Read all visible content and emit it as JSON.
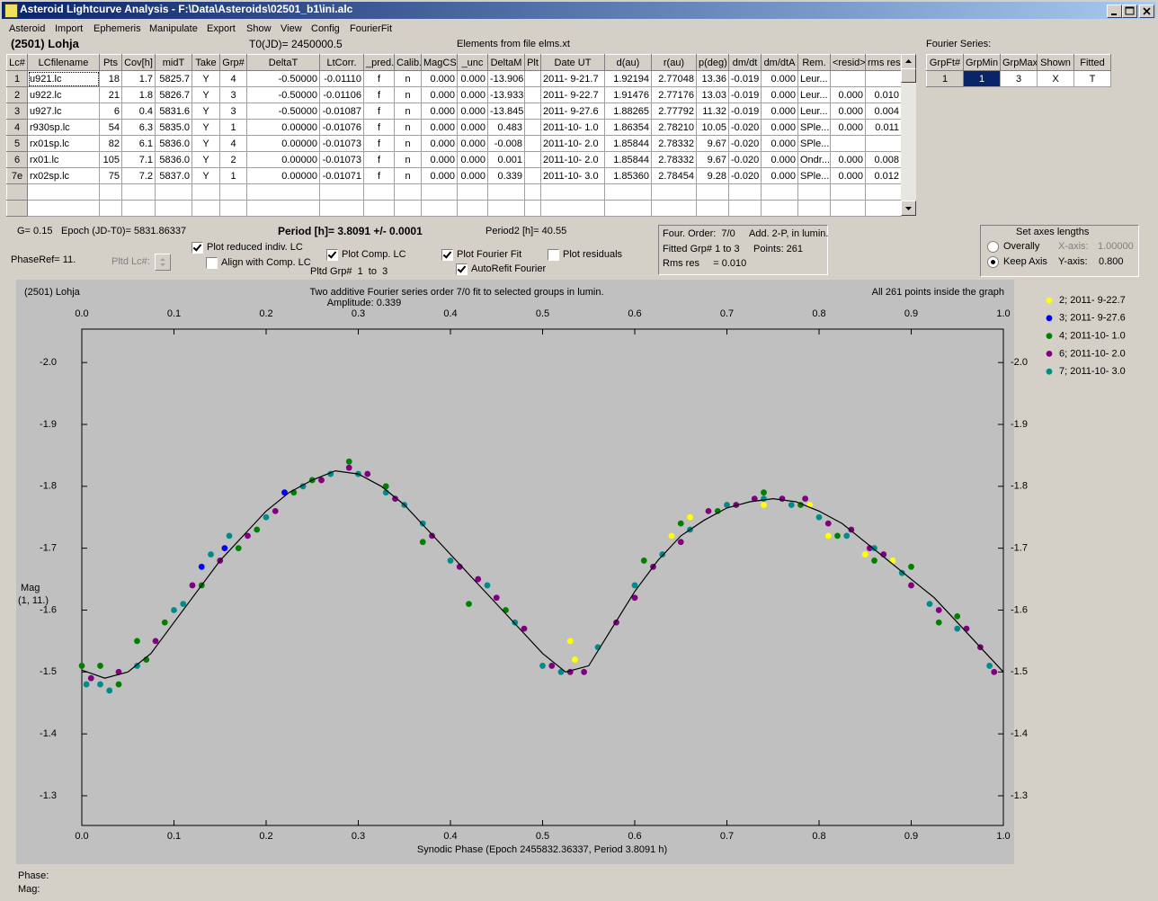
{
  "window": {
    "title": "Asteroid Lightcurve Analysis - F:\\Data\\Asteroids\\02501_b1\\ini.alc",
    "menu": [
      "Asteroid",
      "Import",
      "Ephemeris",
      "Manipulate",
      "Export",
      "Show",
      "View",
      "Config",
      "FourierFit"
    ]
  },
  "header": {
    "object": "(2501) Lohja",
    "t0": "T0(JD)= 2450000.5",
    "elements": "Elements from file elms.xt"
  },
  "lc_table": {
    "columns": [
      "Lc#",
      "LCfilename",
      "Pts",
      "Cov[h]",
      "midT",
      "Take",
      "Grp#",
      "DeltaT",
      "LtCorr.",
      "_pred.",
      "Calib.",
      "MagCS",
      "_unc",
      "DeltaM",
      "Plt",
      "Date UT",
      "d(au)",
      "r(au)",
      "p(deg)",
      "dm/dt",
      "dm/dtA",
      "Rem.",
      "<resid>",
      "rms res"
    ],
    "rows": [
      [
        "1",
        "u921.lc",
        "18",
        "1.7",
        "5825.7",
        "Y",
        "4",
        "-0.50000",
        "-0.01110",
        "f",
        "n",
        "0.000",
        "0.000",
        "-13.906",
        null,
        "2011- 9-21.7",
        "1.92194",
        "2.77048",
        "13.36",
        "-0.019",
        "0.000",
        "Leur...",
        null,
        null
      ],
      [
        "2",
        "u922.lc",
        "21",
        "1.8",
        "5826.7",
        "Y",
        "3",
        "-0.50000",
        "-0.01106",
        "f",
        "n",
        "0.000",
        "0.000",
        "-13.933",
        null,
        "2011- 9-22.7",
        "1.91476",
        "2.77176",
        "13.03",
        "-0.019",
        "0.000",
        "Leur...",
        "0.000",
        "0.010"
      ],
      [
        "3",
        "u927.lc",
        "6",
        "0.4",
        "5831.6",
        "Y",
        "3",
        "-0.50000",
        "-0.01087",
        "f",
        "n",
        "0.000",
        "0.000",
        "-13.845",
        null,
        "2011- 9-27.6",
        "1.88265",
        "2.77792",
        "11.32",
        "-0.019",
        "0.000",
        "Leur...",
        "0.000",
        "0.004"
      ],
      [
        "4",
        "r930sp.lc",
        "54",
        "6.3",
        "5835.0",
        "Y",
        "1",
        "0.00000",
        "-0.01076",
        "f",
        "n",
        "0.000",
        "0.000",
        "0.483",
        null,
        "2011-10- 1.0",
        "1.86354",
        "2.78210",
        "10.05",
        "-0.020",
        "0.000",
        "SPle...",
        "0.000",
        "0.011"
      ],
      [
        "5",
        "rx01sp.lc",
        "82",
        "6.1",
        "5836.0",
        "Y",
        "4",
        "0.00000",
        "-0.01073",
        "f",
        "n",
        "0.000",
        "0.000",
        "-0.008",
        null,
        "2011-10- 2.0",
        "1.85844",
        "2.78332",
        "9.67",
        "-0.020",
        "0.000",
        "SPle...",
        null,
        null
      ],
      [
        "6",
        "rx01.lc",
        "105",
        "7.1",
        "5836.0",
        "Y",
        "2",
        "0.00000",
        "-0.01073",
        "f",
        "n",
        "0.000",
        "0.000",
        "0.001",
        null,
        "2011-10- 2.0",
        "1.85844",
        "2.78332",
        "9.67",
        "-0.020",
        "0.000",
        "Ondr...",
        "0.000",
        "0.008"
      ],
      [
        "7e",
        "rx02sp.lc",
        "75",
        "7.2",
        "5837.0",
        "Y",
        "1",
        "0.00000",
        "-0.01071",
        "f",
        "n",
        "0.000",
        "0.000",
        "0.339",
        null,
        "2011-10- 3.0",
        "1.85360",
        "2.78454",
        "9.28",
        "-0.020",
        "0.000",
        "SPle...",
        "0.000",
        "0.012"
      ]
    ]
  },
  "fourier_table": {
    "label": "Fourier Series:",
    "columns": [
      "GrpFt#",
      "GrpMin",
      "GrpMax",
      "Shown",
      "Fitted"
    ],
    "rows": [
      [
        "1",
        "1",
        "3",
        "X",
        "T"
      ]
    ]
  },
  "info": {
    "g": "G= 0.15",
    "epoch": "Epoch (JD-T0)= 5831.86337",
    "period": "Period [h]= 3.8091 +/- 0.0001",
    "period2": "Period2 [h]= 40.55",
    "phase_ref": "PhaseRef= 11.",
    "pltd_lc": "Pltd Lc#:",
    "pltd_grp": "Pltd Grp#  1  to  3"
  },
  "options": {
    "plot_reduced": {
      "label": "Plot reduced indiv. LC",
      "checked": true
    },
    "align": {
      "label": "Align with Comp. LC",
      "checked": false
    },
    "plot_comp": {
      "label": "Plot Comp. LC",
      "checked": true
    },
    "plot_fourier": {
      "label": "Plot Fourier Fit",
      "checked": true
    },
    "autorefit": {
      "label": "AutoRefit Fourier",
      "checked": true
    },
    "plot_residuals": {
      "label": "Plot residuals",
      "checked": false
    }
  },
  "fit_box": {
    "order": "Four. Order:  7/0",
    "add": "Add. 2-P, in lumin.",
    "fitted": "Fitted Grp# 1 to 3",
    "points": "Points: 261",
    "rms": "Rms res     = 0.010"
  },
  "axes_box": {
    "title": "Set axes lengths",
    "overally": {
      "label": "Overally",
      "checked": false
    },
    "keep": {
      "label": "Keep Axis",
      "checked": true
    },
    "x_label": "X-axis:",
    "x_value": "1.00000",
    "y_label": "Y-axis:",
    "y_value": "0.800"
  },
  "status": {
    "phase": "Phase:",
    "mag": "Mag:"
  },
  "chart_data": {
    "type": "scatter",
    "object": "(2501) Lohja",
    "title": "Two additive Fourier series order 7/0 fit to selected groups in lumin.",
    "subtitle": "Amplitude: 0.339",
    "note": "All 261 points inside the graph",
    "y_label": "Mag",
    "y_label2": "(1, 11.)",
    "x_label": "Synodic Phase (Epoch 2455832.36337, Period 3.8091 h)",
    "xlim": [
      0,
      1
    ],
    "ylim": [
      -1.252,
      -2.054
    ],
    "xticks": [
      {
        "value": 0,
        "label": "0.0"
      },
      0.1,
      0.2,
      0.3,
      0.4,
      0.5,
      0.6,
      0.7,
      0.8,
      0.9,
      {
        "value": 1,
        "label": "1.0"
      }
    ],
    "yticks": [
      {
        "value": -2.0,
        "label": "-2.0"
      },
      -1.9,
      -1.8,
      -1.7,
      -1.6,
      -1.5,
      -1.4,
      -1.3
    ],
    "series": [
      {
        "name": "2; 2011- 9-22.7",
        "color": "#ffff00",
        "x": [
          0.53,
          0.535,
          0.64,
          0.66,
          0.74,
          0.78,
          0.79,
          0.81,
          0.85,
          0.88,
          0.9
        ],
        "values": [
          -1.55,
          -1.52,
          -1.72,
          -1.75,
          -1.77,
          -1.77,
          -1.77,
          -1.72,
          -1.69,
          -1.68,
          -1.67
        ]
      },
      {
        "name": "3; 2011- 9-27.6",
        "color": "#0000ff",
        "x": [
          0.13,
          0.155,
          0.22
        ],
        "values": [
          -1.67,
          -1.7,
          -1.79
        ]
      },
      {
        "name": "4; 2011-10- 1.0",
        "color": "#008000",
        "x": [
          0.0,
          0.02,
          0.04,
          0.06,
          0.07,
          0.09,
          0.13,
          0.17,
          0.19,
          0.23,
          0.25,
          0.29,
          0.33,
          0.37,
          0.42,
          0.46,
          0.61,
          0.65,
          0.69,
          0.74,
          0.78,
          0.82,
          0.86,
          0.9,
          0.93,
          0.95
        ],
        "values": [
          -1.51,
          -1.51,
          -1.48,
          -1.55,
          -1.52,
          -1.58,
          -1.64,
          -1.7,
          -1.73,
          -1.79,
          -1.81,
          -1.84,
          -1.8,
          -1.71,
          -1.61,
          -1.6,
          -1.68,
          -1.74,
          -1.76,
          -1.79,
          -1.77,
          -1.72,
          -1.68,
          -1.67,
          -1.58,
          -1.59
        ]
      },
      {
        "name": "6; 2011-10- 2.0",
        "color": "#800080",
        "x": [
          0.01,
          0.04,
          0.08,
          0.12,
          0.15,
          0.18,
          0.21,
          0.26,
          0.29,
          0.31,
          0.34,
          0.38,
          0.41,
          0.43,
          0.45,
          0.48,
          0.51,
          0.53,
          0.545,
          0.58,
          0.6,
          0.62,
          0.65,
          0.68,
          0.71,
          0.73,
          0.76,
          0.785,
          0.81,
          0.835,
          0.855,
          0.87,
          0.9,
          0.93,
          0.96,
          0.975,
          0.99
        ],
        "values": [
          -1.49,
          -1.5,
          -1.55,
          -1.64,
          -1.68,
          -1.72,
          -1.76,
          -1.81,
          -1.83,
          -1.82,
          -1.78,
          -1.72,
          -1.67,
          -1.65,
          -1.62,
          -1.57,
          -1.51,
          -1.5,
          -1.5,
          -1.58,
          -1.62,
          -1.67,
          -1.71,
          -1.76,
          -1.77,
          -1.78,
          -1.78,
          -1.78,
          -1.74,
          -1.73,
          -1.7,
          -1.69,
          -1.64,
          -1.6,
          -1.57,
          -1.54,
          -1.5
        ]
      },
      {
        "name": "7; 2011-10- 3.0",
        "color": "#008b8b",
        "x": [
          0.005,
          0.02,
          0.03,
          0.06,
          0.1,
          0.11,
          0.14,
          0.16,
          0.2,
          0.24,
          0.27,
          0.3,
          0.33,
          0.35,
          0.37,
          0.4,
          0.44,
          0.47,
          0.5,
          0.52,
          0.56,
          0.6,
          0.63,
          0.66,
          0.7,
          0.74,
          0.77,
          0.8,
          0.83,
          0.86,
          0.89,
          0.92,
          0.95,
          0.985
        ],
        "values": [
          -1.48,
          -1.48,
          -1.47,
          -1.51,
          -1.6,
          -1.61,
          -1.69,
          -1.72,
          -1.75,
          -1.8,
          -1.82,
          -1.82,
          -1.79,
          -1.77,
          -1.74,
          -1.68,
          -1.64,
          -1.58,
          -1.51,
          -1.5,
          -1.54,
          -1.64,
          -1.69,
          -1.73,
          -1.77,
          -1.78,
          -1.77,
          -1.75,
          -1.72,
          -1.7,
          -1.66,
          -1.61,
          -1.57,
          -1.51
        ]
      }
    ],
    "fit": {
      "color": "#000000",
      "x": [
        0,
        0.025,
        0.05,
        0.075,
        0.1,
        0.125,
        0.15,
        0.175,
        0.2,
        0.225,
        0.25,
        0.275,
        0.3,
        0.325,
        0.35,
        0.375,
        0.4,
        0.425,
        0.45,
        0.475,
        0.5,
        0.525,
        0.55,
        0.575,
        0.6,
        0.625,
        0.65,
        0.675,
        0.7,
        0.725,
        0.75,
        0.775,
        0.8,
        0.825,
        0.85,
        0.875,
        0.9,
        0.925,
        0.95,
        0.975,
        1
      ],
      "values": [
        -1.503,
        -1.49,
        -1.5,
        -1.53,
        -1.58,
        -1.63,
        -1.68,
        -1.72,
        -1.76,
        -1.79,
        -1.81,
        -1.825,
        -1.82,
        -1.8,
        -1.77,
        -1.73,
        -1.69,
        -1.65,
        -1.61,
        -1.57,
        -1.53,
        -1.5,
        -1.51,
        -1.57,
        -1.63,
        -1.68,
        -1.72,
        -1.745,
        -1.765,
        -1.775,
        -1.78,
        -1.775,
        -1.76,
        -1.74,
        -1.71,
        -1.68,
        -1.65,
        -1.62,
        -1.58,
        -1.54,
        -1.5
      ]
    }
  }
}
